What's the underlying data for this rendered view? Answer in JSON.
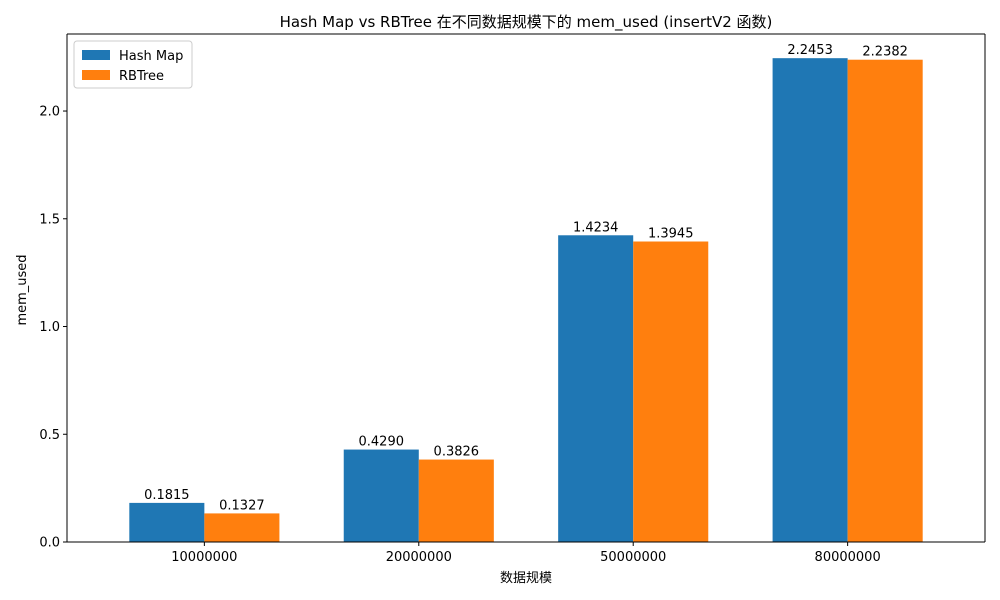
{
  "chart_data": {
    "type": "bar",
    "title": "Hash Map vs RBTree 在不同数据规模下的 mem_used (insertV2 函数)",
    "xlabel": "数据规模",
    "ylabel": "mem_used",
    "categories": [
      "10000000",
      "20000000",
      "50000000",
      "80000000"
    ],
    "series": [
      {
        "name": "Hash Map",
        "color": "#1f77b4",
        "values": [
          0.1815,
          0.429,
          1.4234,
          2.2453
        ],
        "labels": [
          "0.1815",
          "0.4290",
          "1.4234",
          "2.2453"
        ]
      },
      {
        "name": "RBTree",
        "color": "#ff7f0e",
        "values": [
          0.1327,
          0.3826,
          1.3945,
          2.2382
        ],
        "labels": [
          "0.1327",
          "0.3826",
          "1.3945",
          "2.2382"
        ]
      }
    ],
    "ylim": [
      0,
      2.3575
    ],
    "yticks": [
      "0.0",
      "0.5",
      "1.0",
      "1.5",
      "2.0"
    ],
    "ytick_values": [
      0,
      0.5,
      1.0,
      1.5,
      2.0
    ],
    "grid": false,
    "legend_position": "top-left"
  }
}
